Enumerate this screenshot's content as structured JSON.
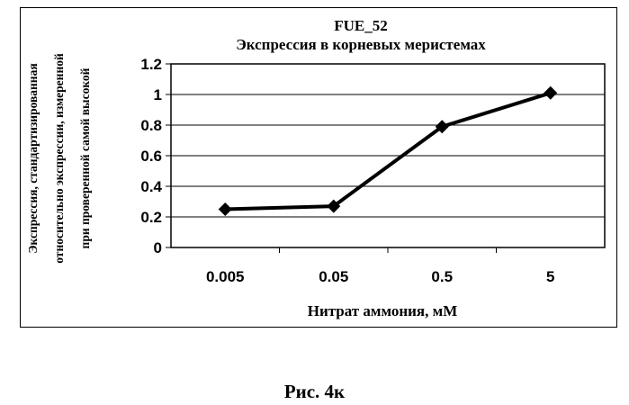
{
  "chart_data": {
    "type": "line",
    "title": "FUE_52",
    "subtitle": "Экспрессия в корневых меристемах",
    "xlabel": "Нитрат аммония, мМ",
    "ylabel_lines": [
      "Экспрессия, стандартизированная",
      "относительно экспрессии, измеренной",
      "при проверенной самой высокой"
    ],
    "categories": [
      "0.005",
      "0.05",
      "0.5",
      "5"
    ],
    "series": [
      {
        "values": [
          0.25,
          0.27,
          0.79,
          1.01
        ]
      }
    ],
    "ylim": [
      0,
      1.2
    ],
    "yticks": [
      "0",
      "0.2",
      "0.4",
      "0.6",
      "0.8",
      "1",
      "1.2"
    ],
    "grid": "horizontal",
    "marker": "diamond",
    "line_color": "#000000"
  },
  "caption": "Рис. 4к"
}
